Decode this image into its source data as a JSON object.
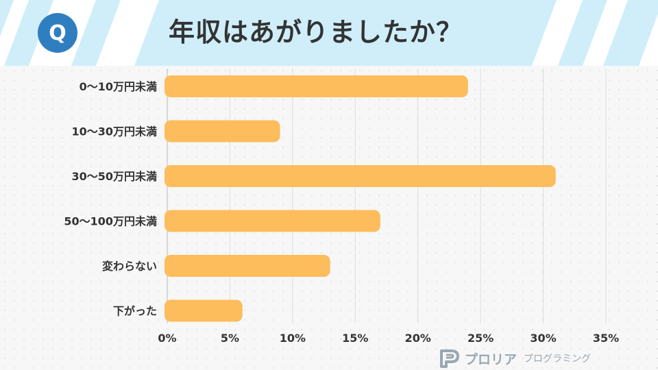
{
  "header": {
    "badge": "Q",
    "title": "年収はあがりましたか？",
    "stripe_color": "#cfeefa"
  },
  "logo": {
    "name": "プロリア",
    "sub": "プログラミング",
    "color": "#9aa7b3"
  },
  "chart_data": {
    "type": "bar",
    "orientation": "horizontal",
    "categories": [
      "0～10万円未満",
      "10～30万円未満",
      "30～50万円未満",
      "50～100万円未満",
      "変わらない",
      "下がった"
    ],
    "values": [
      24,
      9,
      31,
      17,
      13,
      6
    ],
    "unit": "%",
    "xlim": [
      0,
      35
    ],
    "ticks": [
      0,
      5,
      10,
      15,
      20,
      25,
      30,
      35
    ],
    "tick_labels": [
      "0%",
      "5%",
      "10%",
      "15%",
      "20%",
      "25%",
      "30%",
      "35%"
    ],
    "grid": true,
    "bar_color": "#fdbd5c",
    "grid_color": "#dddddd"
  }
}
